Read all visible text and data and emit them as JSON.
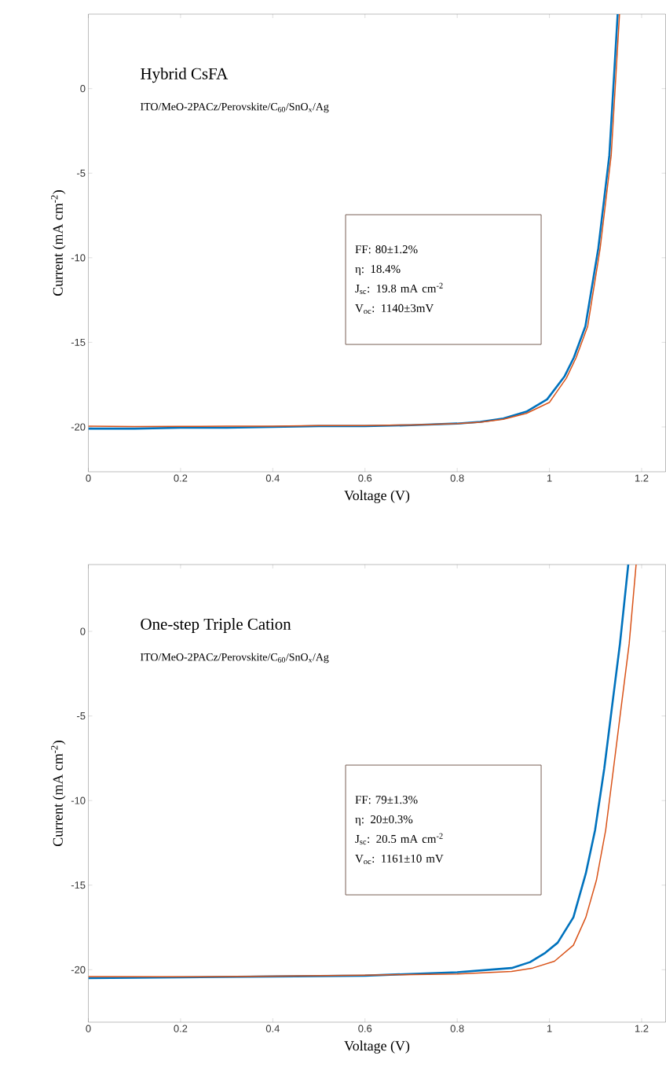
{
  "chart_data": [
    {
      "type": "line",
      "title": "Hybrid CsFA",
      "subtitle": "ITO/MeO-2PACz/Perovskite/C$_{60}$/SnO$_{x}$/Ag",
      "xlabel": "Voltage (V)",
      "ylabel": "Current (mA cm$^{-2}$)",
      "annotations": [
        "FF: 80±1.2%",
        "η: 18.4%",
        "J$_{sc}$: 19.8 mA cm$^{-2}$",
        "V$_{oc}$: 1140±3mV"
      ],
      "xlim": [
        0,
        1.252
      ],
      "ylim": [
        -22.65,
        4.4
      ],
      "xticks": [
        0,
        0.2,
        0.4,
        0.6,
        0.8,
        1,
        1.2
      ],
      "yticks": [
        -20,
        -15,
        -10,
        -5,
        0
      ],
      "series": [
        {
          "color": "#0072bd",
          "x": [
            0,
            0.1,
            0.2,
            0.3,
            0.4,
            0.5,
            0.6,
            0.7,
            0.8,
            0.85,
            0.9,
            0.95,
            0.995,
            1.033,
            1.053,
            1.078,
            1.106,
            1.13,
            1.148
          ],
          "values": [
            -20.1,
            -20.1,
            -20.05,
            -20.05,
            -20.0,
            -19.95,
            -19.95,
            -19.9,
            -19.8,
            -19.7,
            -19.5,
            -19.1,
            -18.37,
            -17.0,
            -15.9,
            -14.05,
            -9.45,
            -3.94,
            4.4
          ]
        },
        {
          "color": "#d95319",
          "x": [
            0,
            0.1,
            0.2,
            0.3,
            0.4,
            0.5,
            0.6,
            0.7,
            0.8,
            0.85,
            0.9,
            0.95,
            1.0,
            1.037,
            1.058,
            1.083,
            1.11,
            1.134,
            1.152
          ],
          "values": [
            -19.95,
            -19.98,
            -19.97,
            -19.95,
            -19.95,
            -19.92,
            -19.92,
            -19.88,
            -19.8,
            -19.72,
            -19.55,
            -19.2,
            -18.55,
            -17.1,
            -15.9,
            -14.05,
            -9.45,
            -3.94,
            4.4
          ]
        }
      ]
    },
    {
      "type": "line",
      "title": "One-step Triple Cation",
      "subtitle": "ITO/MeO-2PACz/Perovskite/C$_{60}$/SnO$_{x}$/Ag",
      "xlabel": "Voltage (V)",
      "ylabel": "Current (mA cm$^{-2}$)",
      "annotations": [
        "FF: 79±1.3%",
        "η: 20±0.3%",
        "J$_{sc}$: 20.5 mA cm$^{-2}$",
        "V$_{oc}$: 1161±10 mV"
      ],
      "xlim": [
        0,
        1.252
      ],
      "ylim": [
        -23.1,
        3.95
      ],
      "xticks": [
        0,
        0.2,
        0.4,
        0.6,
        0.8,
        1,
        1.2
      ],
      "yticks": [
        -20,
        -15,
        -10,
        -5,
        0
      ],
      "series": [
        {
          "color": "#0072bd",
          "x": [
            0,
            0.2,
            0.4,
            0.6,
            0.8,
            0.918,
            0.958,
            0.991,
            1.018,
            1.052,
            1.079,
            1.099,
            1.119,
            1.136,
            1.153,
            1.171
          ],
          "values": [
            -20.5,
            -20.45,
            -20.4,
            -20.35,
            -20.15,
            -19.9,
            -19.55,
            -19.0,
            -18.4,
            -16.9,
            -14.3,
            -11.75,
            -8.1,
            -4.4,
            -0.73,
            3.95
          ]
        },
        {
          "color": "#d95319",
          "x": [
            0,
            0.2,
            0.4,
            0.6,
            0.8,
            0.918,
            0.964,
            1.011,
            1.052,
            1.079,
            1.102,
            1.122,
            1.139,
            1.156,
            1.173,
            1.188
          ],
          "values": [
            -20.4,
            -20.42,
            -20.38,
            -20.32,
            -20.25,
            -20.1,
            -19.9,
            -19.5,
            -18.55,
            -16.9,
            -14.7,
            -11.75,
            -8.1,
            -4.4,
            -0.73,
            3.95
          ]
        }
      ]
    }
  ]
}
